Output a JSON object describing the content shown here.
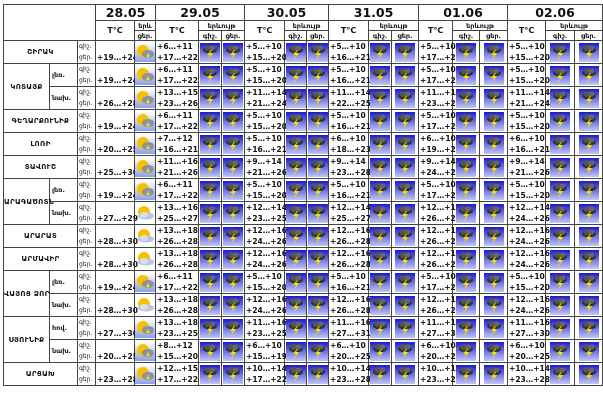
{
  "header": {
    "temp_label": "T°C",
    "phenomenon": "երևույթ",
    "phenomenon_short": "երև",
    "night": "գիշ.",
    "day": "ցեր.",
    "dates": [
      "28.05",
      "29.05",
      "30.05",
      "31.05",
      "01.06",
      "02.06"
    ]
  },
  "regions": [
    {
      "name": "ՇԻՐԱԿ",
      "subs": [
        {
          "sub": "",
          "d0": {
            "day": "+19…+24",
            "icon": "partly-cloudy-thunder"
          },
          "days": [
            [
              "+6…+11",
              "+17…+22"
            ],
            [
              "+5…+10",
              "+15…+20"
            ],
            [
              "+5…+10",
              "+16…+21"
            ],
            [
              "+5…+10",
              "+17…+22"
            ],
            [
              "+5…+10",
              "+15…+20"
            ]
          ]
        }
      ]
    },
    {
      "name": "ԿՈՏԱՅՔ",
      "subs": [
        {
          "sub": "լեռ.",
          "d0": {
            "day": "+19…+24",
            "icon": "partly-cloudy-thunder"
          },
          "days": [
            [
              "+6…+11",
              "+17…+22"
            ],
            [
              "+5…+10",
              "+15…+20"
            ],
            [
              "+5…+10",
              "+16…+21"
            ],
            [
              "+5…+10",
              "+17…+22"
            ],
            [
              "+5…+10",
              "+15…+20"
            ]
          ]
        },
        {
          "sub": "նախ.",
          "d0": {
            "day": "+26…+28",
            "icon": "partly-cloudy-thunder"
          },
          "days": [
            [
              "+13…+15",
              "+23…+26"
            ],
            [
              "+11…+14",
              "+21…+24"
            ],
            [
              "+11…+14",
              "+22…+25"
            ],
            [
              "+11…+14",
              "+23…+26"
            ],
            [
              "+11…+14",
              "+21…+24"
            ]
          ]
        }
      ]
    },
    {
      "name": "ԳԵՂԱՐՔՈՒՆԻՔ",
      "subs": [
        {
          "sub": "",
          "d0": {
            "day": "+19…+24",
            "icon": "partly-cloudy-thunder"
          },
          "days": [
            [
              "+6…+11",
              "+17…+22"
            ],
            [
              "+5…+10",
              "+15…+20"
            ],
            [
              "+5…+10",
              "+16…+21"
            ],
            [
              "+5…+10",
              "+17…+22"
            ],
            [
              "+5…+10",
              "+15…+20"
            ]
          ]
        }
      ]
    },
    {
      "name": "ԼՈՌԻ",
      "subs": [
        {
          "sub": "",
          "d0": {
            "day": "+20…+25",
            "icon": "partly-cloudy-thunder"
          },
          "days": [
            [
              "+7…+12",
              "+16…+21"
            ],
            [
              "+5…+10",
              "+16…+21"
            ],
            [
              "+6…+10",
              "+18…+23"
            ],
            [
              "+6…+10",
              "+19…+24"
            ],
            [
              "+6…+10",
              "+16…+21"
            ]
          ]
        }
      ]
    },
    {
      "name": "ՏԱՎՈՒՇ",
      "subs": [
        {
          "sub": "",
          "d0": {
            "day": "+25…+30",
            "icon": "partly-cloudy-thunder"
          },
          "days": [
            [
              "+11…+16",
              "+21…+26"
            ],
            [
              "+9…+14",
              "+21…+26"
            ],
            [
              "+9…+14",
              "+23…+28"
            ],
            [
              "+9…+14",
              "+24…+29"
            ],
            [
              "+9…+14",
              "+21…+26"
            ]
          ]
        }
      ]
    },
    {
      "name": "ԱՐԱԳԱԾՈՏՆ",
      "subs": [
        {
          "sub": "լեռ.",
          "d0": {
            "day": "+19…+24",
            "icon": "partly-cloudy-thunder"
          },
          "days": [
            [
              "+6…+11",
              "+17…+22"
            ],
            [
              "+5…+10",
              "+15…+20"
            ],
            [
              "+5…+10",
              "+16…+21"
            ],
            [
              "+5…+10",
              "+17…+22"
            ],
            [
              "+5…+10",
              "+15…+20"
            ]
          ]
        },
        {
          "sub": "նախ.",
          "d0": {
            "day": "+27…+29",
            "icon": "partly-cloudy"
          },
          "days": [
            [
              "+13…+16",
              "+25…+27"
            ],
            [
              "+12…+14",
              "+23…+25"
            ],
            [
              "+12…+14",
              "+25…+27"
            ],
            [
              "+12…+14",
              "+26…+28"
            ],
            [
              "+12…+14",
              "+24…+26"
            ]
          ]
        }
      ]
    },
    {
      "name": "ԱՐԱՐԱՏ",
      "subs": [
        {
          "sub": "",
          "d0": {
            "day": "+28…+30",
            "icon": "partly-cloudy"
          },
          "days": [
            [
              "+13…+18",
              "+26…+28"
            ],
            [
              "+12…+16",
              "+24…+26"
            ],
            [
              "+12…+16",
              "+26…+28"
            ],
            [
              "+12…+16",
              "+26…+28"
            ],
            [
              "+12…+16",
              "+24…+26"
            ]
          ]
        }
      ]
    },
    {
      "name": "ԱՐՄԱՎԻՐ",
      "subs": [
        {
          "sub": "",
          "d0": {
            "day": "+28…+30",
            "icon": "partly-cloudy"
          },
          "days": [
            [
              "+13…+18",
              "+26…+28"
            ],
            [
              "+12…+16",
              "+24…+26"
            ],
            [
              "+12…+16",
              "+26…+28"
            ],
            [
              "+12…+16",
              "+26…+28"
            ],
            [
              "+12…+16",
              "+24…+26"
            ]
          ]
        }
      ]
    },
    {
      "name": "ՎԱՅՈՑ ՁՈՐ",
      "subs": [
        {
          "sub": "լեռ.",
          "d0": {
            "day": "+19…+24",
            "icon": "partly-cloudy-thunder"
          },
          "days": [
            [
              "+6…+11",
              "+17…+22"
            ],
            [
              "+5…+10",
              "+15…+20"
            ],
            [
              "+5…+10",
              "+16…+21"
            ],
            [
              "+5…+10",
              "+17…+22"
            ],
            [
              "+5…+10",
              "+15…+20"
            ]
          ]
        },
        {
          "sub": "նախ.",
          "d0": {
            "day": "+28…+30",
            "icon": "partly-cloudy"
          },
          "days": [
            [
              "+13…+18",
              "+26…+28"
            ],
            [
              "+12…+16",
              "+24…+26"
            ],
            [
              "+12…+16",
              "+26…+28"
            ],
            [
              "+12…+16",
              "+26…+28"
            ],
            [
              "+12…+16",
              "+24…+26"
            ]
          ]
        }
      ]
    },
    {
      "name": "ՍՅՈՒՆԻՔ",
      "subs": [
        {
          "sub": "հով.",
          "d0": {
            "day": "+27…+30",
            "icon": "partly-cloudy-thunder"
          },
          "days": [
            [
              "+13…+18",
              "+23…+25"
            ],
            [
              "+11…+16",
              "+23…+25"
            ],
            [
              "+11…+16",
              "+27…+31"
            ],
            [
              "+11…+16",
              "+27…+30"
            ],
            [
              "+11…+16",
              "+27…+30"
            ]
          ]
        },
        {
          "sub": "նախ.",
          "d0": {
            "day": "+20…+25",
            "icon": "partly-cloudy-thunder"
          },
          "days": [
            [
              "+8…+12",
              "+15…+20"
            ],
            [
              "+6…+10",
              "+15…+19"
            ],
            [
              "+6…+10",
              "+20…+25"
            ],
            [
              "+6…+10",
              "+20…+25"
            ],
            [
              "+6…+10",
              "+20…+25"
            ]
          ]
        }
      ]
    },
    {
      "name": "ԱՐՑԱԽ",
      "subs": [
        {
          "sub": "",
          "d0": {
            "day": "+23…+28",
            "icon": "partly-cloudy-thunder"
          },
          "days": [
            [
              "+12…+15",
              "+17…+22"
            ],
            [
              "+10…+14",
              "+17…+22"
            ],
            [
              "+10…+14",
              "+23…+28"
            ],
            [
              "+10…+14",
              "+23…+28"
            ],
            [
              "+10…+14",
              "+23…+28"
            ]
          ]
        }
      ]
    }
  ],
  "forecast_icon": "thunderstorm",
  "colors": {
    "storm_bg_top": "#1a1ad0",
    "storm_bg_bottom": "#b8c0f0",
    "bolt": "#f5e400",
    "sun": "#f6c200"
  }
}
